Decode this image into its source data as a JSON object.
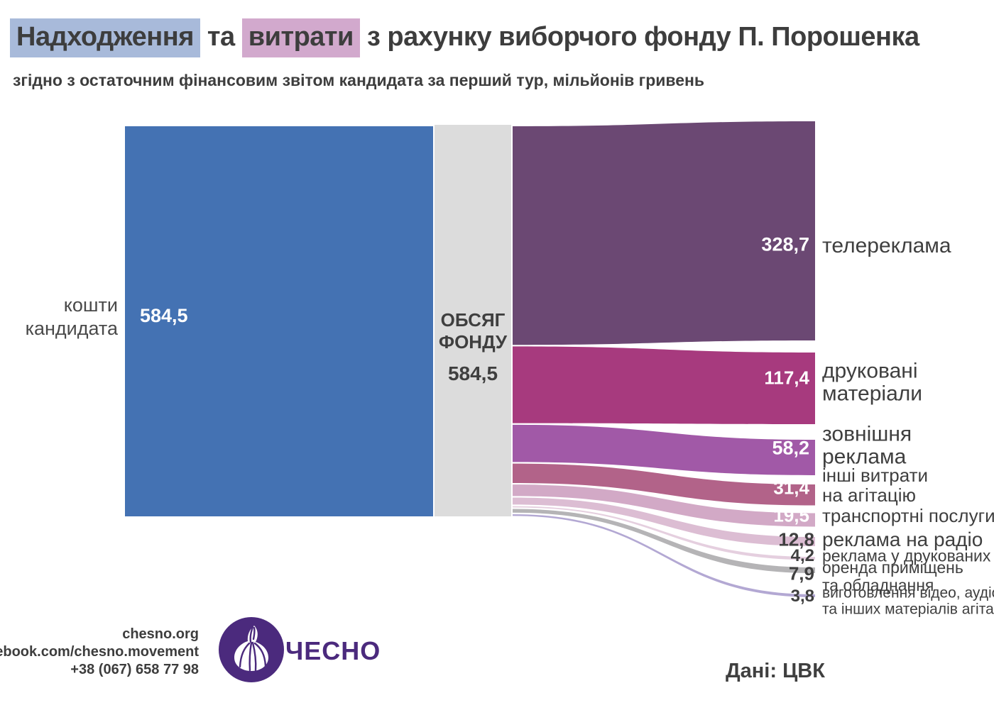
{
  "title": {
    "segments": [
      {
        "text": "Надходження",
        "highlight": "blue"
      },
      {
        "text": " та ",
        "highlight": null
      },
      {
        "text": "витрати",
        "highlight": "pink"
      },
      {
        "text": " з рахунку виборчого фонду П. Порошенка",
        "highlight": null
      }
    ]
  },
  "subtitle": "згідно з остаточним фінансовим звітом кандидата за перший тур, мільйонів гривень",
  "colors": {
    "highlight_blue": "#a8bada",
    "highlight_pink": "#d2a9cd",
    "source_bar_blue": "#4472b3",
    "fund_column_gray": "#dcdcdc",
    "text_dark": "#3d3d3d",
    "logo_purple": "#4b2a7d"
  },
  "fund_column": {
    "line1": "ОБСЯГ",
    "line2": "ФОНДУ",
    "value": "584,5"
  },
  "chart_data": {
    "type": "sankey",
    "title": "Надходження та витрати з рахунку виборчого фонду П. Порошенка",
    "subtitle": "згідно з остаточним фінансовим звітом кандидата за перший тур, мільйонів гривень",
    "unit": "мільйонів гривень",
    "total": 584.5,
    "source": {
      "label": "кошти кандидата",
      "label_lines": [
        "кошти",
        "кандидата"
      ],
      "value": 584.5,
      "display": "584,5",
      "color": "#4472b3"
    },
    "fund_node": {
      "label": "ОБСЯГ ФОНДУ",
      "value": 584.5,
      "display": "584,5"
    },
    "flows": [
      {
        "label": "телереклама",
        "label_lines": [
          "телереклама"
        ],
        "value": 328.7,
        "display": "328,7",
        "color": "#6b4873"
      },
      {
        "label": "друковані матеріали",
        "label_lines": [
          "друковані",
          "матеріали"
        ],
        "value": 117.4,
        "display": "117,4",
        "color": "#a73a7e"
      },
      {
        "label": "зовнішня реклама",
        "label_lines": [
          "зовнішня",
          "реклама"
        ],
        "value": 58.2,
        "display": "58,2",
        "color": "#a159a7"
      },
      {
        "label": "інші витрати на агітацію",
        "label_lines": [
          "інші витрати",
          "на агітацію"
        ],
        "value": 31.4,
        "display": "31,4",
        "color": "#b26389"
      },
      {
        "label": "транспортні послуги",
        "label_lines": [
          "транспортні послуги"
        ],
        "value": 19.5,
        "display": "19,5",
        "color": "#d2a9c6"
      },
      {
        "label": "реклама на радіо",
        "label_lines": [
          "реклама на радіо"
        ],
        "value": 12.8,
        "display": "12,8",
        "color": "#dcbdd3"
      },
      {
        "label": "реклама у друкованих ЗМІ",
        "label_lines": [
          "реклама у друкованих ЗМІ"
        ],
        "value": 4.2,
        "display": "4,2",
        "color": "#e5cfdf"
      },
      {
        "label": "оренда приміщень та обладнання",
        "label_lines": [
          "оренда приміщень",
          "та обладнання"
        ],
        "value": 7.9,
        "display": "7,9",
        "color": "#b5b4b6"
      },
      {
        "label": "виготовлення відео, аудіо та інших матеріалів агітації",
        "label_lines": [
          "виготовлення відео, аудіо",
          "та інших матеріалів агітації"
        ],
        "value": 3.8,
        "display": "3,8",
        "color": "#b3a8d3"
      }
    ]
  },
  "footer": {
    "website": "chesno.org",
    "facebook": "facebook.com/chesno.movement",
    "phone": "+38 (067) 658 77 98",
    "logo_text": "ЧЕСНО",
    "data_source": "Дані: ЦВК"
  }
}
